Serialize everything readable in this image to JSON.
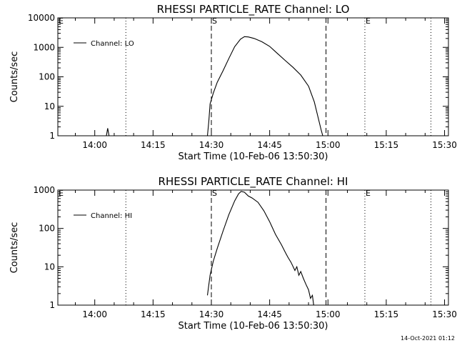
{
  "chart_data": [
    {
      "type": "line",
      "title": "RHESSI PARTICLE_RATE Channel: LO",
      "xlabel": "Start Time (10-Feb-06 13:50:30)",
      "ylabel": "Counts/sec",
      "y_scale": "log",
      "ylim": [
        1,
        10000
      ],
      "y_ticks": [
        "1",
        "10",
        "100",
        "1000",
        "10000"
      ],
      "xlim": [
        "13:50:30",
        "15:31:00"
      ],
      "x_ticks": [
        "14:00",
        "14:15",
        "14:30",
        "14:45",
        "15:00",
        "15:15",
        "15:30"
      ],
      "legend": {
        "placement": "top-left",
        "entries": [
          "Channel: LO"
        ]
      },
      "grid": false,
      "markers": [
        {
          "time": "13:50:30",
          "label": "E",
          "style": "dotted"
        },
        {
          "time": "14:08:00",
          "label": "",
          "style": "dotted"
        },
        {
          "time": "14:30:00",
          "label": "S",
          "style": "dashed"
        },
        {
          "time": "14:59:30",
          "label": "",
          "style": "dashed"
        },
        {
          "time": "15:09:30",
          "label": "E",
          "style": "dotted"
        },
        {
          "time": "15:26:30",
          "label": "",
          "style": "dotted"
        }
      ],
      "series": [
        {
          "name": "Channel: LO",
          "segments": [
            [
              [
                "14:03:00",
                1.0
              ],
              [
                "14:03:20",
                1.8
              ],
              [
                "14:03:40",
                1.0
              ]
            ],
            [
              [
                "14:29:00",
                1.0
              ],
              [
                "14:29:20",
                3.0
              ],
              [
                "14:29:40",
                12
              ],
              [
                "14:30:30",
                28
              ],
              [
                "14:31:30",
                65
              ],
              [
                "14:33:00",
                160
              ],
              [
                "14:34:30",
                420
              ],
              [
                "14:36:00",
                1050
              ],
              [
                "14:37:30",
                1900
              ],
              [
                "14:38:30",
                2300
              ],
              [
                "14:39:30",
                2250
              ],
              [
                "14:41:00",
                2000
              ],
              [
                "14:43:00",
                1550
              ],
              [
                "14:45:00",
                1080
              ],
              [
                "14:47:00",
                620
              ],
              [
                "14:49:00",
                360
              ],
              [
                "14:51:00",
                210
              ],
              [
                "14:53:00",
                115
              ],
              [
                "14:55:00",
                48
              ],
              [
                "14:56:30",
                14
              ],
              [
                "14:57:30",
                4
              ],
              [
                "14:58:15",
                1.6
              ],
              [
                "14:58:40",
                1.0
              ]
            ]
          ]
        }
      ]
    },
    {
      "type": "line",
      "title": "RHESSI PARTICLE_RATE Channel: HI",
      "xlabel": "Start Time (10-Feb-06 13:50:30)",
      "ylabel": "Counts/sec",
      "y_scale": "log",
      "ylim": [
        1,
        1000
      ],
      "y_ticks": [
        "1",
        "10",
        "100",
        "1000"
      ],
      "xlim": [
        "13:50:30",
        "15:31:00"
      ],
      "x_ticks": [
        "14:00",
        "14:15",
        "14:30",
        "14:45",
        "15:00",
        "15:15",
        "15:30"
      ],
      "legend": {
        "placement": "top-left",
        "entries": [
          "Channel: HI"
        ]
      },
      "grid": false,
      "markers": [
        {
          "time": "13:50:30",
          "label": "E",
          "style": "dotted"
        },
        {
          "time": "14:08:00",
          "label": "",
          "style": "dotted"
        },
        {
          "time": "14:30:00",
          "label": "S",
          "style": "dashed"
        },
        {
          "time": "14:59:30",
          "label": "",
          "style": "dashed"
        },
        {
          "time": "15:09:30",
          "label": "E",
          "style": "dotted"
        },
        {
          "time": "15:26:30",
          "label": "",
          "style": "dotted"
        }
      ],
      "series": [
        {
          "name": "Channel: HI",
          "segments": [
            [
              [
                "14:29:00",
                1.8
              ],
              [
                "14:29:40",
                6
              ],
              [
                "14:30:30",
                14
              ],
              [
                "14:31:30",
                30
              ],
              [
                "14:33:00",
                85
              ],
              [
                "14:34:30",
                230
              ],
              [
                "14:36:00",
                520
              ],
              [
                "14:37:00",
                800
              ],
              [
                "14:37:40",
                920
              ],
              [
                "14:38:30",
                880
              ],
              [
                "14:39:30",
                700
              ],
              [
                "14:40:30",
                620
              ],
              [
                "14:42:00",
                480
              ],
              [
                "14:43:30",
                290
              ],
              [
                "14:45:00",
                150
              ],
              [
                "14:46:30",
                70
              ],
              [
                "14:48:00",
                38
              ],
              [
                "14:49:00",
                24
              ],
              [
                "14:49:40",
                18
              ],
              [
                "14:50:30",
                13
              ],
              [
                "14:51:30",
                8
              ],
              [
                "14:52:00",
                10
              ],
              [
                "14:52:30",
                6
              ],
              [
                "14:53:00",
                7.5
              ],
              [
                "14:53:40",
                5
              ],
              [
                "14:54:20",
                3.5
              ],
              [
                "14:55:00",
                2.5
              ],
              [
                "14:55:30",
                1.5
              ],
              [
                "14:56:00",
                1.8
              ],
              [
                "14:56:20",
                1.0
              ]
            ]
          ]
        }
      ]
    }
  ],
  "footer": {
    "timestamp": "14-Oct-2021 01:12"
  }
}
